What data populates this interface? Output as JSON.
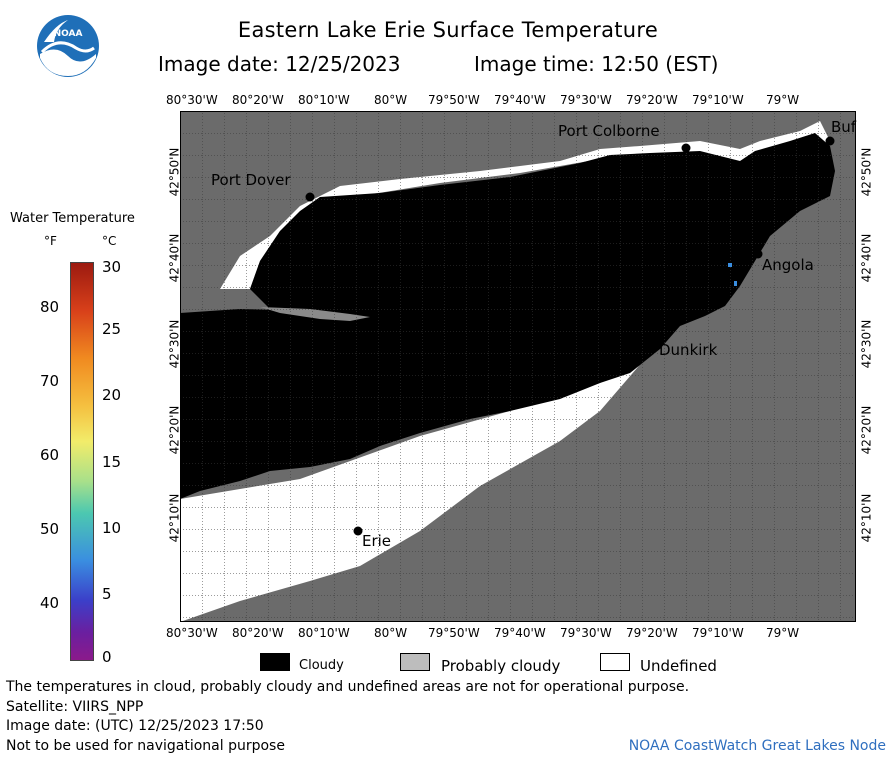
{
  "header": {
    "title": "Eastern Lake Erie Surface Temperature",
    "image_date": "Image date: 12/25/2023",
    "image_time": "Image time: 12:50 (EST)"
  },
  "logo": {
    "text": "NOAA",
    "color": "#1f6fb8"
  },
  "map": {
    "colors": {
      "land": "#6b6b6b",
      "cloud": "#000000",
      "probably_cloudy": "#bdbdbd",
      "undefined": "#ffffff",
      "grid": "#3a3a3a"
    },
    "longitude_labels": [
      "80°30'W",
      "80°20'W",
      "80°10'W",
      "80°W",
      "79°50'W",
      "79°40'W",
      "79°30'W",
      "79°20'W",
      "79°10'W",
      "79°W"
    ],
    "latitude_labels": [
      "42°50'N",
      "42°40'N",
      "42°30'N",
      "42°20'N",
      "42°10'N"
    ],
    "places": {
      "port_colborne": "Port Colborne",
      "buffalo": "Buf",
      "port_dover": "Port Dover",
      "angola": "Angola",
      "dunkirk": "Dunkirk",
      "erie": "Erie"
    }
  },
  "legend": {
    "title": "Water Temperature",
    "unit_f": "°F",
    "unit_c": "°C",
    "fahrenheit_ticks": [
      "80",
      "70",
      "60",
      "50",
      "40"
    ],
    "celsius_ticks": [
      "30",
      "25",
      "20",
      "15",
      "10",
      "5",
      "0"
    ],
    "gradient_colors": [
      "#9c1a10",
      "#e0501a",
      "#f5a623",
      "#f2ec6a",
      "#a8e08a",
      "#4cc8b0",
      "#3a8ee0",
      "#3b3fc9",
      "#6a1fa0",
      "#8b1a8b"
    ]
  },
  "key": {
    "cloudy": "Cloudy",
    "probably_cloudy": "Probably cloudy",
    "undefined": "Undefined"
  },
  "footer": {
    "note": "The temperatures in cloud, probably cloudy and undefined areas are not for operational purpose.",
    "satellite": "Satellite: VIIRS_NPP",
    "utc": "Image date: (UTC) 12/25/2023  17:50",
    "nav": "Not to be used for navigational purpose",
    "credit": "NOAA CoastWatch Great Lakes Node"
  }
}
